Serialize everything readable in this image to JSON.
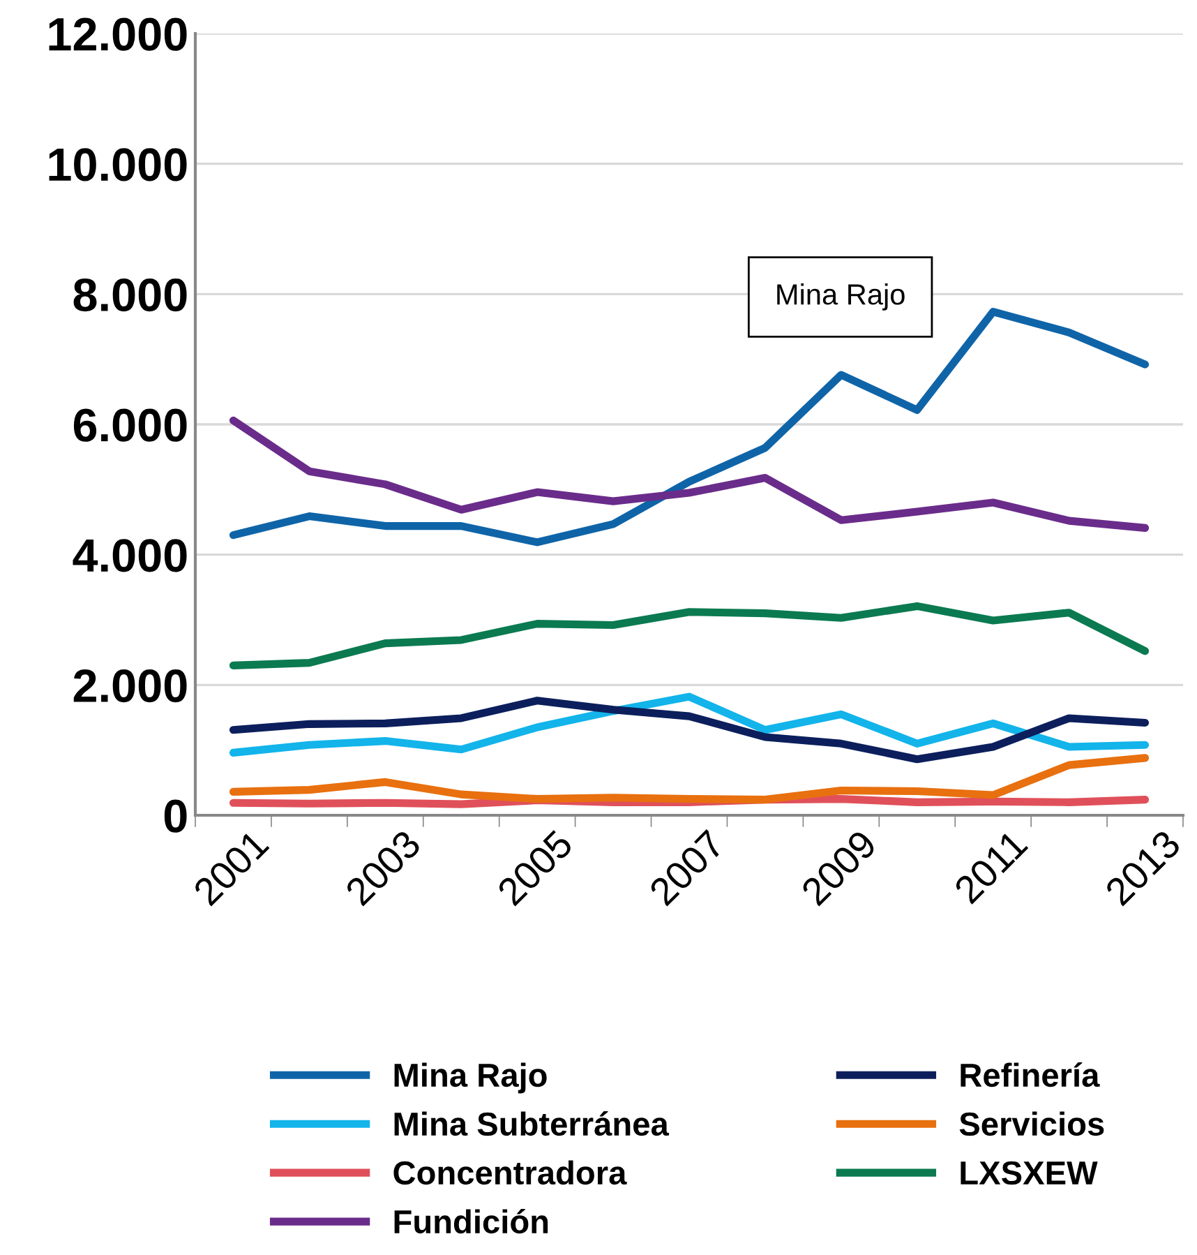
{
  "chart_data": {
    "type": "line",
    "categories": [
      "2001",
      null,
      "2003",
      null,
      "2005",
      null,
      "2007",
      null,
      "2009",
      null,
      "2011",
      null,
      "2013"
    ],
    "series": [
      {
        "name": "Mina Rajo",
        "color": "#0f64a8",
        "values": [
          4300,
          4590,
          4440,
          4440,
          4190,
          4470,
          5120,
          5640,
          6760,
          6220,
          7730,
          7410,
          6920
        ]
      },
      {
        "name": "Mina Subterránea",
        "color": "#12b4ea",
        "values": [
          960,
          1080,
          1140,
          1010,
          1350,
          1600,
          1820,
          1310,
          1550,
          1100,
          1410,
          1050,
          1080
        ]
      },
      {
        "name": "Concentradora",
        "color": "#e0505a",
        "values": [
          190,
          180,
          190,
          170,
          230,
          200,
          200,
          240,
          250,
          200,
          210,
          200,
          240
        ]
      },
      {
        "name": "Fundición",
        "color": "#6a2c8a",
        "values": [
          6060,
          5280,
          5080,
          4690,
          4960,
          4820,
          4950,
          5180,
          4530,
          4660,
          4800,
          4520,
          4410
        ]
      },
      {
        "name": "Refinería",
        "color": "#0c1f5c",
        "values": [
          1310,
          1400,
          1410,
          1490,
          1760,
          1620,
          1520,
          1200,
          1100,
          860,
          1050,
          1490,
          1420
        ]
      },
      {
        "name": "Servicios",
        "color": "#e8700f",
        "values": [
          360,
          390,
          510,
          320,
          250,
          270,
          250,
          240,
          380,
          370,
          310,
          770,
          880
        ]
      },
      {
        "name": "LXSXEW",
        "color": "#0b7a50",
        "values": [
          2300,
          2340,
          2640,
          2690,
          2940,
          2920,
          3120,
          3100,
          3030,
          3210,
          2990,
          3110,
          2520
        ]
      }
    ],
    "ylim": [
      0,
      12000
    ],
    "yticks": [
      {
        "value": 0,
        "label": "0"
      },
      {
        "value": 2000,
        "label": "2.000"
      },
      {
        "value": 4000,
        "label": "4.000"
      },
      {
        "value": 6000,
        "label": "6.000"
      },
      {
        "value": 8000,
        "label": "8.000"
      },
      {
        "value": 10000,
        "label": "10.000"
      },
      {
        "value": 12000,
        "label": "12.000"
      }
    ],
    "grid": "y",
    "legend": "bottom",
    "marker": "none",
    "line_style": "solid",
    "annotations": [
      "Mina Rajo"
    ]
  }
}
